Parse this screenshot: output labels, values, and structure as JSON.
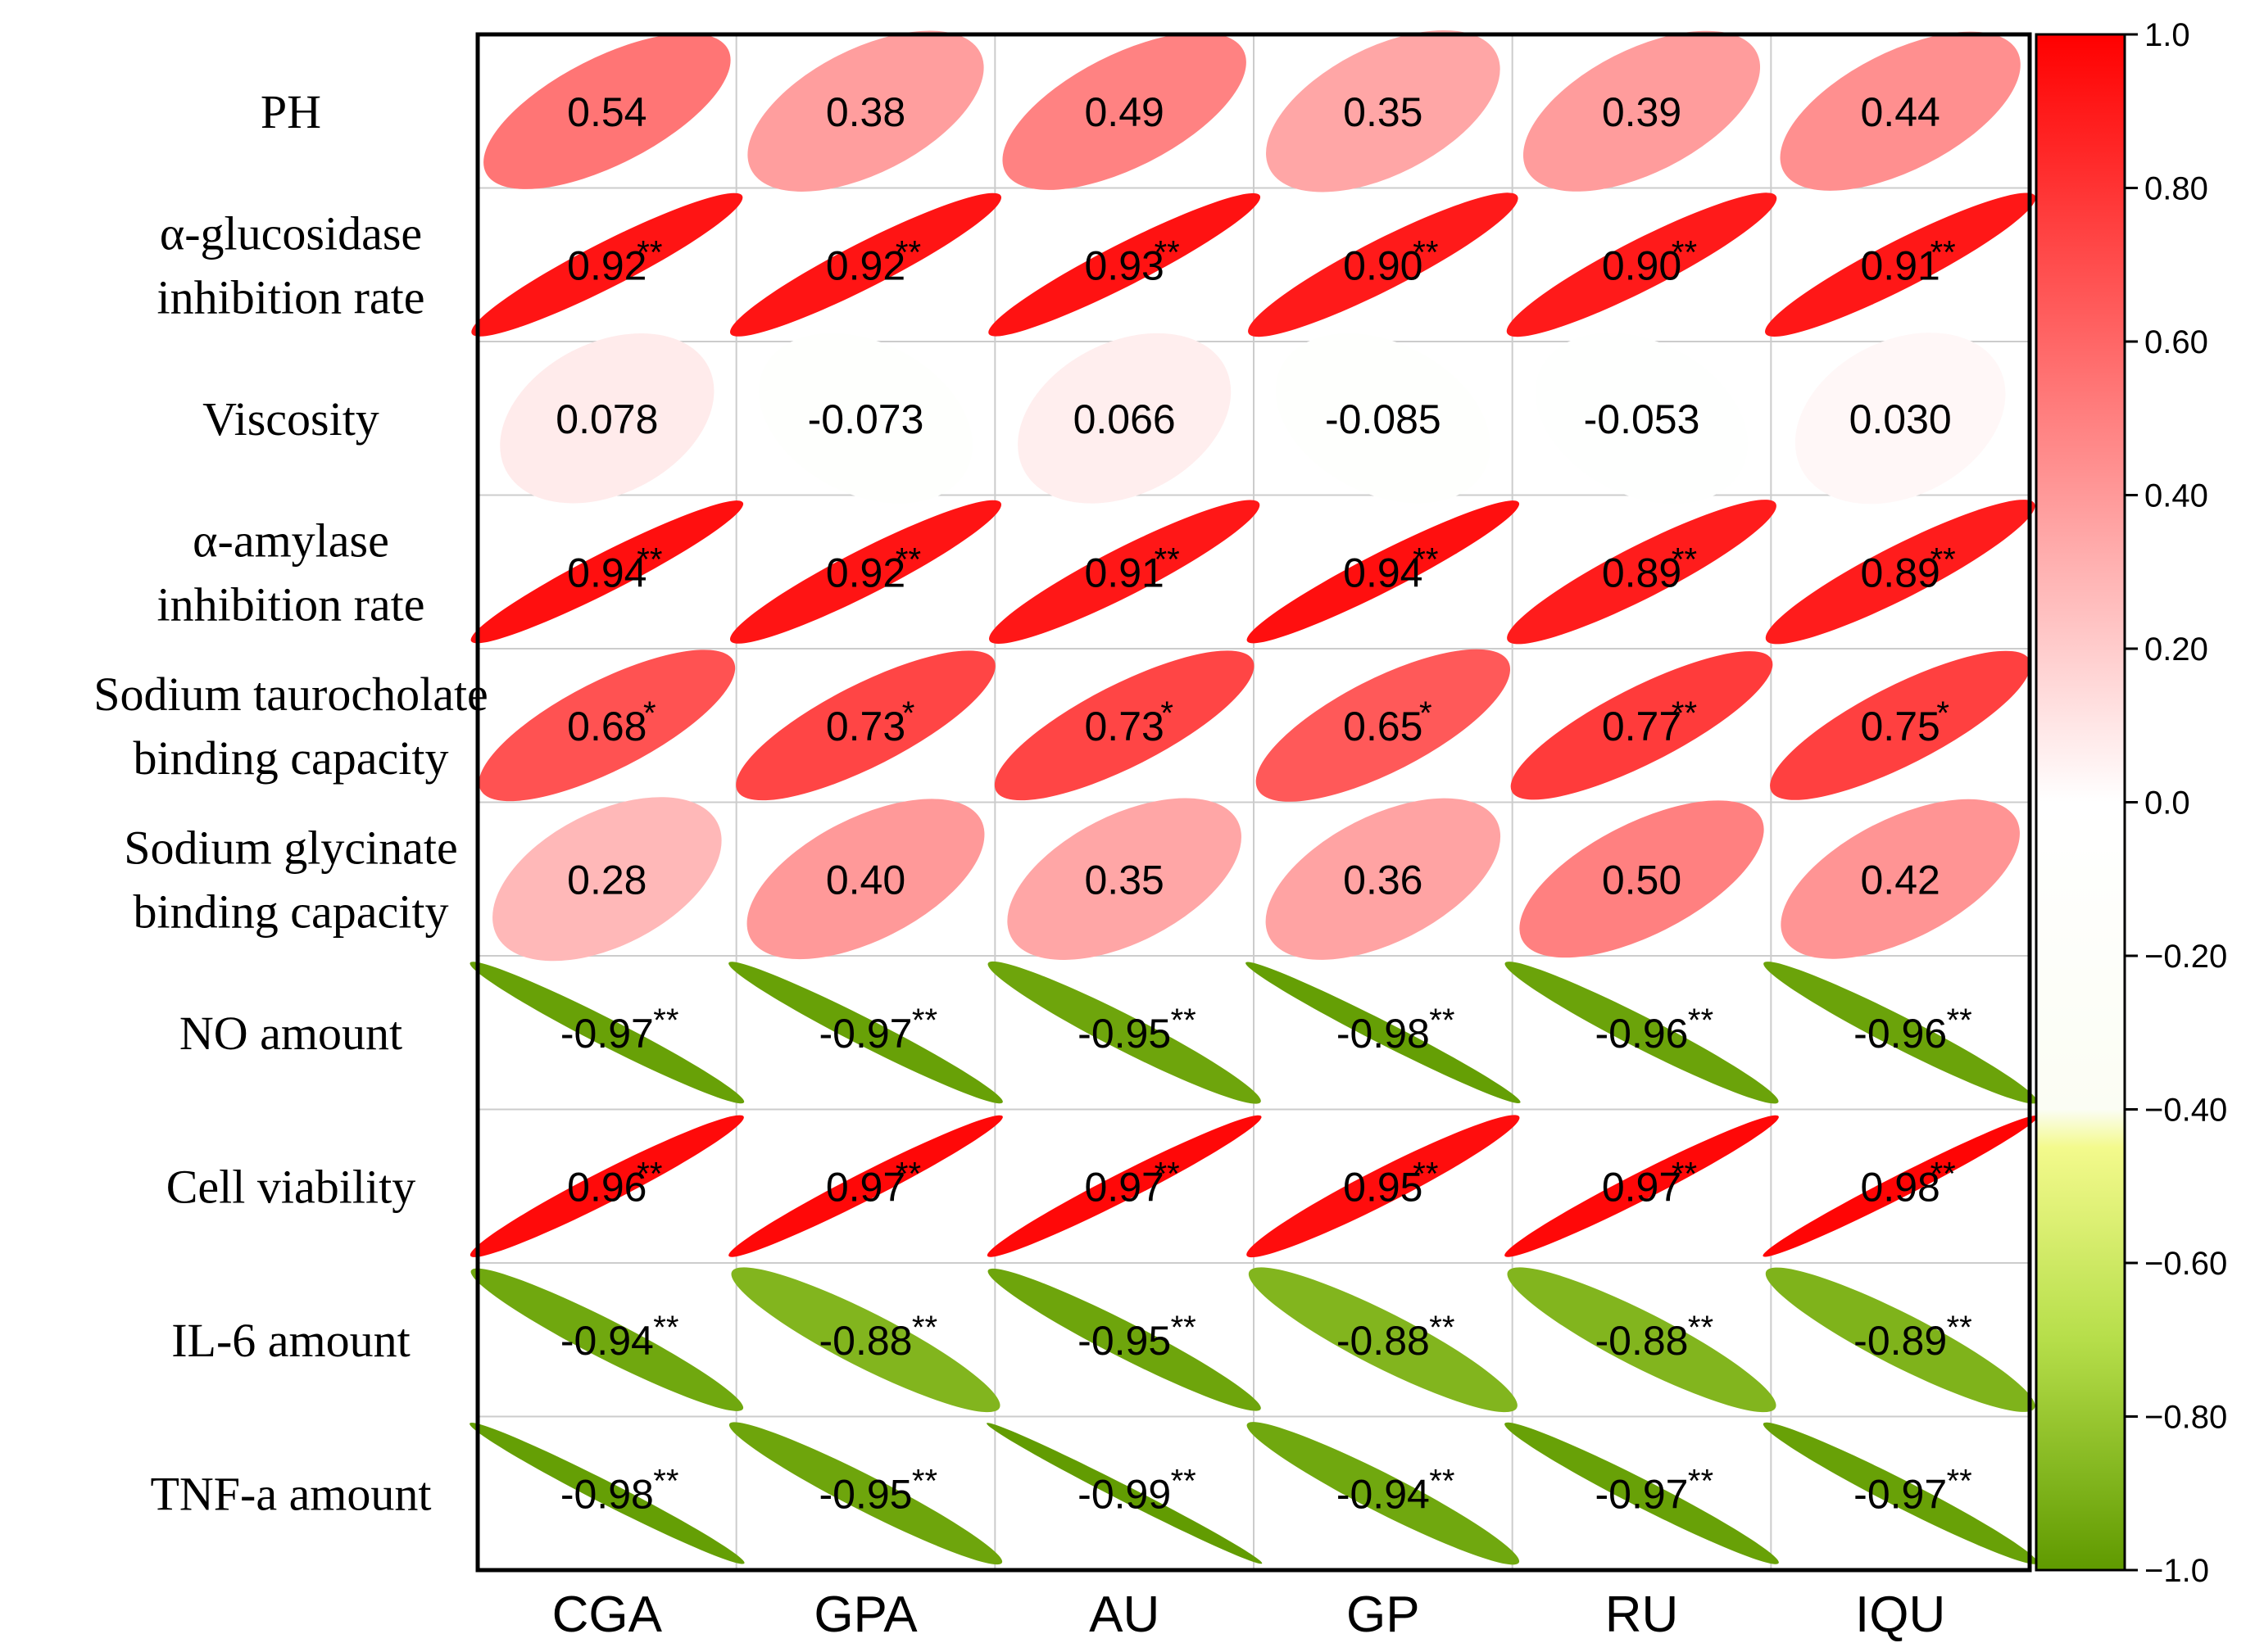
{
  "chart_data": {
    "type": "heatmap",
    "subtype": "correlation-ellipse",
    "columns": [
      "CGA",
      "GPA",
      "AU",
      "GP",
      "RU",
      "IQU"
    ],
    "rows": [
      {
        "label": [
          "PH"
        ],
        "values": [
          "0.54",
          "0.38",
          "0.49",
          "0.35",
          "0.39",
          "0.44"
        ],
        "sig": [
          "",
          "",
          "",
          "",
          "",
          ""
        ]
      },
      {
        "label": [
          "α-glucosidase",
          "inhibition rate"
        ],
        "values": [
          "0.92",
          "0.92",
          "0.93",
          "0.90",
          "0.90",
          "0.91"
        ],
        "sig": [
          "**",
          "**",
          "**",
          "**",
          "**",
          "**"
        ]
      },
      {
        "label": [
          "Viscosity"
        ],
        "values": [
          "0.078",
          "-0.073",
          "0.066",
          "-0.085",
          "-0.053",
          "0.030"
        ],
        "sig": [
          "",
          "",
          "",
          "",
          "",
          ""
        ]
      },
      {
        "label": [
          "α-amylase",
          "inhibition rate"
        ],
        "values": [
          "0.94",
          "0.92",
          "0.91",
          "0.94",
          "0.89",
          "0.89"
        ],
        "sig": [
          "**",
          "**",
          "**",
          "**",
          "**",
          "**"
        ]
      },
      {
        "label": [
          "Sodium taurocholate",
          "binding capacity"
        ],
        "values": [
          "0.68",
          "0.73",
          "0.73",
          "0.65",
          "0.77",
          "0.75"
        ],
        "sig": [
          "*",
          "*",
          "*",
          "*",
          "**",
          "*"
        ]
      },
      {
        "label": [
          "Sodium glycinate",
          "binding capacity"
        ],
        "values": [
          "0.28",
          "0.40",
          "0.35",
          "0.36",
          "0.50",
          "0.42"
        ],
        "sig": [
          "",
          "",
          "",
          "",
          "",
          ""
        ]
      },
      {
        "label": [
          "NO amount"
        ],
        "values": [
          "-0.97",
          "-0.97",
          "-0.95",
          "-0.98",
          "-0.96",
          "-0.96"
        ],
        "sig": [
          "**",
          "**",
          "**",
          "**",
          "**",
          "**"
        ]
      },
      {
        "label": [
          "Cell viability"
        ],
        "values": [
          "0.96",
          "0.97",
          "0.97",
          "0.95",
          "0.97",
          "0.98"
        ],
        "sig": [
          "**",
          "**",
          "**",
          "**",
          "**",
          "**"
        ]
      },
      {
        "label": [
          "IL-6 amount"
        ],
        "values": [
          "-0.94",
          "-0.88",
          "-0.95",
          "-0.88",
          "-0.88",
          "-0.89"
        ],
        "sig": [
          "**",
          "**",
          "**",
          "**",
          "**",
          "**"
        ]
      },
      {
        "label": [
          "TNF-a amount"
        ],
        "values": [
          "-0.98",
          "-0.95",
          "-0.99",
          "-0.94",
          "-0.97",
          "-0.97"
        ],
        "sig": [
          "**",
          "**",
          "**",
          "**",
          "**",
          "**"
        ]
      }
    ],
    "colorbar": {
      "range": [
        -1.0,
        1.0
      ],
      "ticks": [
        "1.0",
        "0.80",
        "0.60",
        "0.40",
        "0.20",
        "0.0",
        "−0.20",
        "−0.40",
        "−0.60",
        "−0.80",
        "−1.0"
      ],
      "colors": {
        "positive_max": "#ff0000",
        "zero": "#ffffff",
        "neg_threshold": "#ffff99",
        "neg_mid": "#b6de4a",
        "negative_max": "#5f9a00"
      }
    },
    "legend_position": "right"
  }
}
